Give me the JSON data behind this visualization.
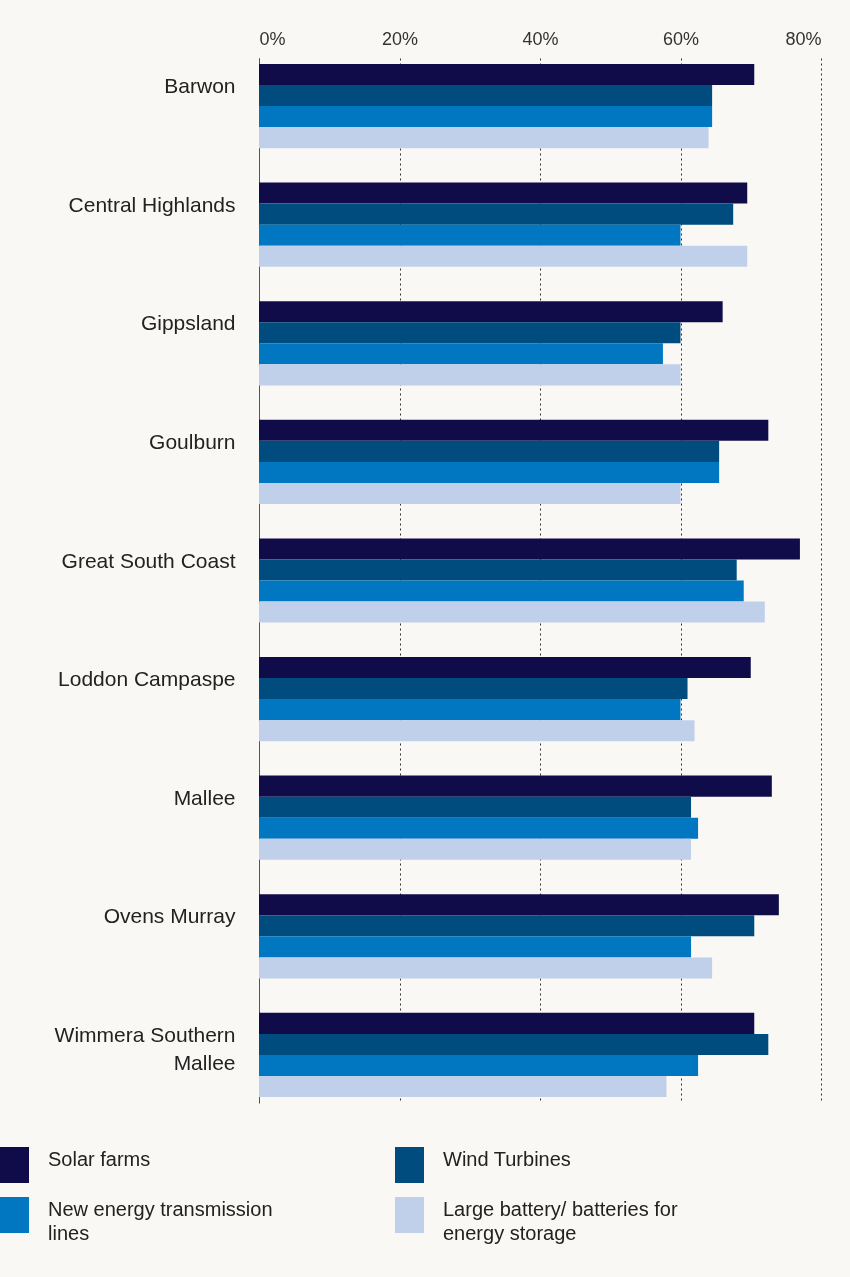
{
  "chart_data": {
    "type": "bar",
    "orientation": "horizontal",
    "categories": [
      "Barwon",
      "Central Highlands",
      "Gippsland",
      "Goulburn",
      "Great South Coast",
      "Loddon Campaspe",
      "Mallee",
      "Ovens Murray",
      "Wimmera Southern Mallee"
    ],
    "series": [
      {
        "name": "Solar farms",
        "color": "#100c4a",
        "values": [
          70.5,
          69.5,
          66,
          72.5,
          77,
          70,
          73,
          74,
          70.5
        ]
      },
      {
        "name": "Wind Turbines",
        "color": "#004c7e",
        "values": [
          64.5,
          67.5,
          60,
          65.5,
          68,
          61,
          61.5,
          70.5,
          72.5
        ]
      },
      {
        "name": "New energy transmission lines",
        "color": "#0077c0",
        "values": [
          64.5,
          60,
          57.5,
          65.5,
          69,
          60,
          62.5,
          61.5,
          62.5
        ]
      },
      {
        "name": "Large battery/ batteries for energy storage",
        "color": "#c1d0ea",
        "values": [
          64,
          69.5,
          60,
          60,
          72,
          62,
          61.5,
          64.5,
          58
        ]
      }
    ],
    "xlim": [
      0,
      80
    ],
    "xticks": [
      {
        "value": 0,
        "label": "0%"
      },
      {
        "value": 20,
        "label": "20%"
      },
      {
        "value": 40,
        "label": "40%"
      },
      {
        "value": 60,
        "label": "60%"
      },
      {
        "value": 80,
        "label": "80%"
      }
    ],
    "grid": "x",
    "legend": "bottom"
  }
}
